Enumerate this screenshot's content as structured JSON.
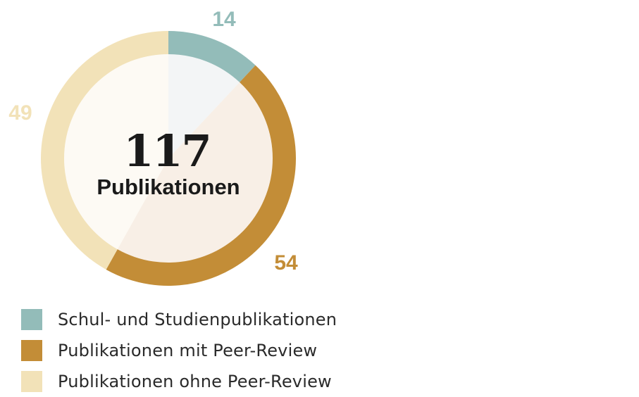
{
  "chart_data": {
    "type": "pie",
    "donut": true,
    "total": "117",
    "total_caption": "Publikationen",
    "slices": [
      {
        "name": "Schul- und Studienpublikationen",
        "value": 14,
        "label": "14",
        "color": "#93bcb9",
        "fill_color": "#f3f5f6"
      },
      {
        "name": "Publikationen mit Peer-Review",
        "value": 54,
        "label": "54",
        "color": "#c38d37",
        "fill_color": "#f8efe6"
      },
      {
        "name": "Publikationen ohne Peer-Review",
        "value": 49,
        "label": "49",
        "color": "#f2e2b8",
        "fill_color": "#fdfaf4"
      }
    ],
    "legend_position": "bottom-left",
    "start_angle": "12 o'clock, clockwise"
  }
}
